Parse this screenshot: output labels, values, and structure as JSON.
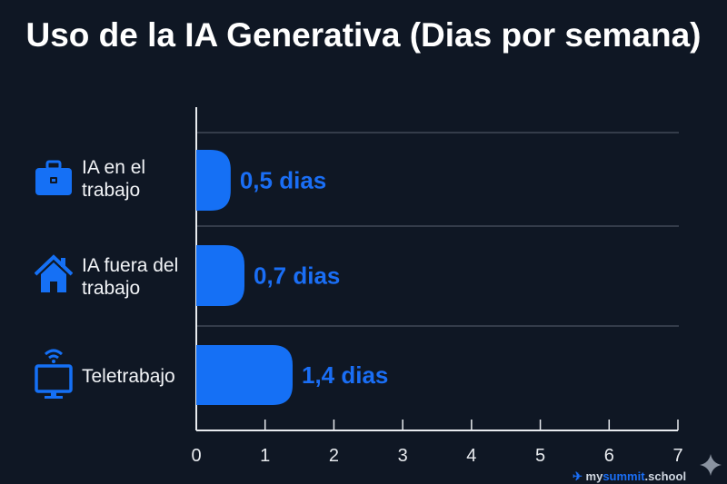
{
  "chart_data": {
    "type": "bar",
    "orientation": "horizontal",
    "title": "Uso de la IA Generativa (Dias por semana)",
    "categories": [
      "IA en el trabajo",
      "IA fuera del trabajo",
      "Teletrabajo"
    ],
    "category_lines": [
      [
        "IA en el",
        "trabajo"
      ],
      [
        "IA fuera del",
        "trabajo"
      ],
      [
        "Teletrabajo"
      ]
    ],
    "category_icons": [
      "briefcase-icon",
      "house-icon",
      "monitor-wifi-icon"
    ],
    "values": [
      0.5,
      0.7,
      1.4
    ],
    "data_labels": [
      "0,5 dias",
      "0,7 dias",
      "1,4 dias"
    ],
    "xlim": [
      0,
      7
    ],
    "xticks": [
      "0",
      "1",
      "2",
      "3",
      "4",
      "5",
      "6",
      "7"
    ],
    "grid": true,
    "bar_color": "#1570f5",
    "label_color": "#1a6ef5",
    "background": "#0f1724"
  },
  "watermark": {
    "my": "my",
    "summit": "summit",
    ".school": ".school"
  }
}
